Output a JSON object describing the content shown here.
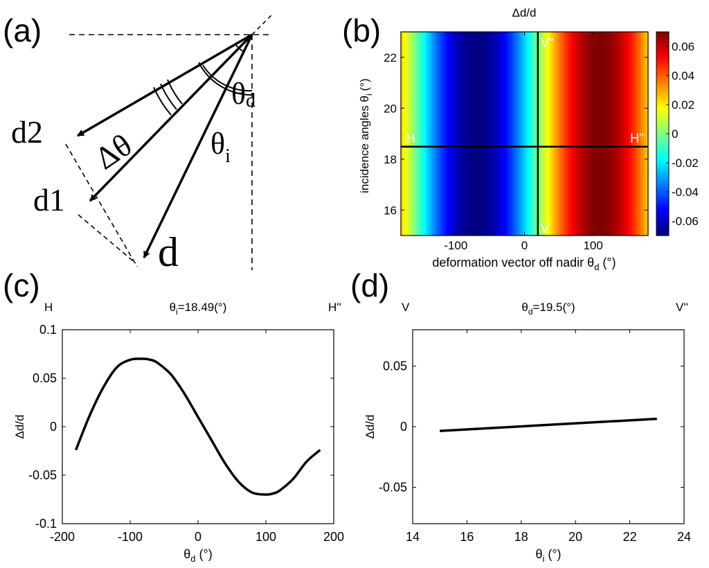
{
  "panel_labels": {
    "a": "(a)",
    "b": "(b)",
    "c": "(c)",
    "d": "(d)"
  },
  "diagram_a": {
    "labels": {
      "d": "d",
      "d1": "d1",
      "d2": "d2",
      "delta_theta": "Δθ",
      "theta_i": "θ",
      "theta_i_sub": "i",
      "theta_d": "θ",
      "theta_d_sub": "d"
    }
  },
  "colors": {
    "line": "#000000",
    "colormap": [
      "#00007f",
      "#0000ff",
      "#007fff",
      "#00ffff",
      "#7fff7f",
      "#ffff00",
      "#ff7f00",
      "#ff0000",
      "#7f0000"
    ]
  },
  "chart_data": [
    {
      "id": "b",
      "type": "heatmap",
      "title": "Δd/d",
      "xlabel": "deformation vector off nadir θ",
      "xlabel_sub": "d",
      "xlabel_unit": "(°)",
      "ylabel": "incidence angles θ",
      "ylabel_sub": "i",
      "ylabel_unit": "(°)",
      "xlim": [
        -180,
        180
      ],
      "ylim": [
        15,
        23
      ],
      "xticks": [
        -100,
        0,
        100
      ],
      "yticks": [
        16,
        18,
        20,
        22
      ],
      "value_model": "amplitude*sin((x - phase_deg) deg)",
      "amplitude": 0.07,
      "phase_deg": 20,
      "clim": [
        -0.07,
        0.07
      ],
      "colorbar_ticks": [
        0.06,
        0.04,
        0.02,
        0,
        -0.02,
        -0.04,
        -0.06
      ],
      "colorbar_tick_labels": [
        "0.06",
        "0.04",
        "0.02",
        "0",
        "-0.02",
        "-0.04",
        "-0.06"
      ],
      "hline": {
        "y": 18.49,
        "left_label": "H",
        "right_label": "H''"
      },
      "vline": {
        "x": 19.5,
        "top_label": "V''",
        "bottom_label": "V"
      }
    },
    {
      "id": "c",
      "type": "line",
      "title": "θ",
      "title_sub": "i",
      "title_value": "=18.49(°)",
      "corner_left": "H",
      "corner_right": "H''",
      "xlabel": "θ",
      "xlabel_sub": "d",
      "xlabel_unit": "(°)",
      "ylabel": "Δd/d",
      "xlim": [
        -200,
        200
      ],
      "ylim": [
        -0.1,
        0.1
      ],
      "xticks": [
        -200,
        -100,
        0,
        100,
        200
      ],
      "xtick_labels": [
        "-200",
        "-100",
        "0",
        "100",
        "200"
      ],
      "yticks": [
        -0.1,
        -0.05,
        0,
        0.05,
        0.1
      ],
      "ytick_labels": [
        "-0.1",
        "-0.05",
        "0",
        "0.05",
        "0.1"
      ],
      "series": [
        {
          "name": "Δd/d",
          "x": [
            -180,
            -160,
            -140,
            -120,
            -100,
            -80,
            -70,
            -60,
            -40,
            -20,
            0,
            20,
            40,
            60,
            80,
            100,
            110,
            120,
            140,
            160,
            180
          ],
          "y": [
            -0.024,
            0.011,
            0.04,
            0.061,
            0.069,
            0.07,
            0.069,
            0.066,
            0.054,
            0.034,
            0.01,
            -0.014,
            -0.038,
            -0.057,
            -0.068,
            -0.07,
            -0.069,
            -0.066,
            -0.054,
            -0.036,
            -0.024
          ]
        }
      ]
    },
    {
      "id": "d",
      "type": "line",
      "title": "θ",
      "title_sub": "d",
      "title_value": "=19.5(°)",
      "corner_left": "V",
      "corner_right": "V''",
      "xlabel": "θ",
      "xlabel_sub": "i",
      "xlabel_unit": "(°)",
      "ylabel": "Δd/d",
      "xlim": [
        14,
        24
      ],
      "ylim": [
        -0.08,
        0.08
      ],
      "xticks": [
        14,
        16,
        18,
        20,
        22,
        24
      ],
      "xtick_labels": [
        "14",
        "16",
        "18",
        "20",
        "22",
        "24"
      ],
      "yticks": [
        -0.05,
        0,
        0.05
      ],
      "ytick_labels": [
        "-0.05",
        "0",
        "0.05"
      ],
      "series": [
        {
          "name": "Δd/d",
          "x": [
            15,
            23
          ],
          "y": [
            -0.0035,
            0.0065
          ]
        }
      ]
    }
  ]
}
